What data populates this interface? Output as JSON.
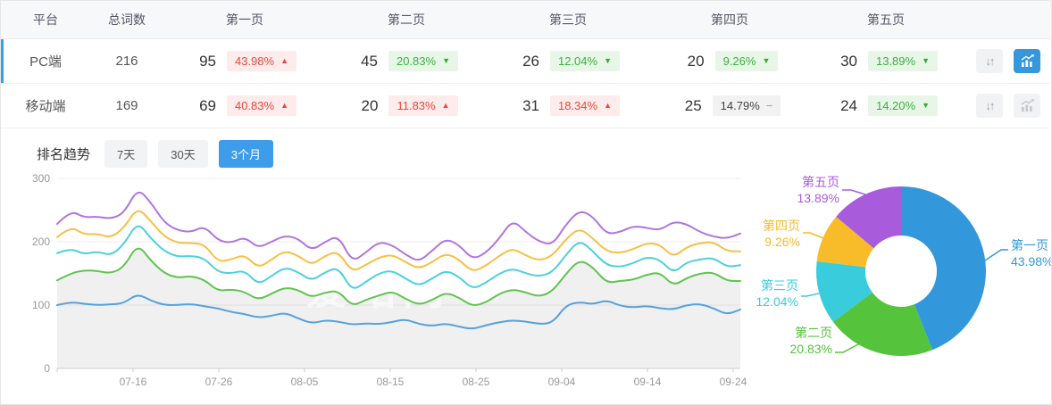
{
  "table": {
    "columns": [
      "平台",
      "总词数",
      "第一页",
      "第二页",
      "第三页",
      "第四页",
      "第五页"
    ],
    "rows": [
      {
        "platform": "PC端",
        "total": "216",
        "selected": true,
        "pages": [
          {
            "count": "95",
            "pct": "43.98%",
            "dir": "up",
            "tone": "red"
          },
          {
            "count": "45",
            "pct": "20.83%",
            "dir": "down",
            "tone": "green"
          },
          {
            "count": "26",
            "pct": "12.04%",
            "dir": "down",
            "tone": "green"
          },
          {
            "count": "20",
            "pct": "9.26%",
            "dir": "down",
            "tone": "green"
          },
          {
            "count": "30",
            "pct": "13.89%",
            "dir": "down",
            "tone": "green"
          }
        ],
        "chart_button_active": true
      },
      {
        "platform": "移动端",
        "total": "169",
        "selected": false,
        "pages": [
          {
            "count": "69",
            "pct": "40.83%",
            "dir": "up",
            "tone": "red"
          },
          {
            "count": "20",
            "pct": "11.83%",
            "dir": "up",
            "tone": "red"
          },
          {
            "count": "31",
            "pct": "18.34%",
            "dir": "up",
            "tone": "red"
          },
          {
            "count": "25",
            "pct": "14.79%",
            "dir": "flat",
            "tone": "gray"
          },
          {
            "count": "24",
            "pct": "14.20%",
            "dir": "down",
            "tone": "green"
          }
        ],
        "chart_button_active": false
      }
    ]
  },
  "trend": {
    "title": "排名趋势",
    "tabs": [
      {
        "label": "7天",
        "active": false
      },
      {
        "label": "30天",
        "active": false
      },
      {
        "label": "3个月",
        "active": true
      }
    ]
  },
  "watermark": "爱站网",
  "colors": {
    "row_accent": "#2fa3e6",
    "tab_active": "#3d9dea",
    "icon_button_active": "#3598db",
    "badge_red_text": "#e8483d",
    "badge_red_bg": "#fdeceb",
    "badge_green_text": "#3fae3f",
    "badge_green_bg": "#e8f6e8",
    "badge_gray_bg": "#f2f2f2"
  },
  "chart_data": [
    {
      "type": "line",
      "title": "排名趋势 (3个月)",
      "xlabel": "",
      "ylabel": "",
      "x_ticks": [
        "07-16",
        "07-26",
        "08-05",
        "08-15",
        "08-25",
        "09-04",
        "09-14",
        "09-24"
      ],
      "ylim": [
        0,
        300
      ],
      "y_ticks": [
        0,
        100,
        200,
        300
      ],
      "grid": true,
      "legend": "none",
      "note": "five stacked cumulative rank-count lines; gray area fill under green series",
      "series": [
        {
          "name": "line-blue",
          "color": "#55a1dc",
          "area": false,
          "values": [
            100,
            105,
            102,
            100,
            101,
            103,
            118,
            107,
            100,
            100,
            102,
            98,
            95,
            89,
            86,
            80,
            83,
            88,
            79,
            71,
            76,
            74,
            69,
            71,
            70,
            73,
            78,
            70,
            67,
            71,
            66,
            62,
            68,
            73,
            76,
            74,
            70,
            72,
            100,
            105,
            101,
            108,
            99,
            96,
            99,
            95,
            93,
            100,
            102,
            95,
            85,
            93
          ]
        },
        {
          "name": "line-green",
          "color": "#61c351",
          "area": true,
          "values": [
            139,
            150,
            155,
            154,
            150,
            160,
            197,
            170,
            150,
            143,
            146,
            140,
            122,
            125,
            121,
            108,
            118,
            128,
            124,
            112,
            120,
            123,
            98,
            108,
            115,
            122,
            110,
            100,
            108,
            120,
            112,
            98,
            104,
            118,
            125,
            120,
            113,
            122,
            150,
            172,
            160,
            135,
            138,
            140,
            148,
            152,
            130,
            143,
            150,
            152,
            138,
            138
          ]
        },
        {
          "name": "line-cyan",
          "color": "#4dd0dd",
          "area": false,
          "values": [
            182,
            190,
            180,
            185,
            178,
            196,
            232,
            205,
            185,
            176,
            178,
            174,
            152,
            150,
            155,
            132,
            146,
            160,
            152,
            138,
            152,
            160,
            122,
            136,
            150,
            155,
            142,
            130,
            142,
            155,
            145,
            125,
            135,
            150,
            158,
            150,
            145,
            152,
            180,
            203,
            185,
            163,
            160,
            166,
            176,
            172,
            150,
            168,
            172,
            175,
            160,
            163
          ]
        },
        {
          "name": "line-yellow",
          "color": "#f6c043",
          "area": false,
          "values": [
            207,
            225,
            211,
            213,
            206,
            222,
            255,
            232,
            208,
            198,
            198,
            196,
            168,
            172,
            180,
            158,
            172,
            186,
            178,
            163,
            178,
            185,
            152,
            163,
            175,
            180,
            168,
            157,
            168,
            182,
            172,
            152,
            162,
            178,
            190,
            178,
            170,
            178,
            205,
            222,
            205,
            185,
            182,
            188,
            198,
            196,
            175,
            192,
            198,
            200,
            185,
            185
          ]
        },
        {
          "name": "line-purple",
          "color": "#b175de",
          "area": false,
          "values": [
            228,
            250,
            238,
            240,
            236,
            245,
            285,
            262,
            230,
            218,
            215,
            225,
            202,
            198,
            208,
            190,
            200,
            210,
            205,
            186,
            200,
            210,
            168,
            182,
            200,
            195,
            180,
            168,
            186,
            205,
            195,
            172,
            182,
            205,
            235,
            215,
            200,
            195,
            228,
            250,
            240,
            212,
            215,
            225,
            222,
            218,
            232,
            228,
            215,
            208,
            205,
            213
          ]
        }
      ]
    },
    {
      "type": "pie",
      "subtype": "donut",
      "labels": [
        "第一页",
        "第二页",
        "第三页",
        "第四页",
        "第五页"
      ],
      "values": [
        43.98,
        20.83,
        12.04,
        9.26,
        13.89
      ],
      "unit": "%",
      "colors": [
        "#3297db",
        "#55c33c",
        "#38ccdd",
        "#f8bb29",
        "#a85cdc"
      ],
      "start_angle": "top",
      "direction": "clockwise",
      "inner_radius_ratio": 0.42,
      "legend_position": "labels-with-leader-lines"
    }
  ]
}
